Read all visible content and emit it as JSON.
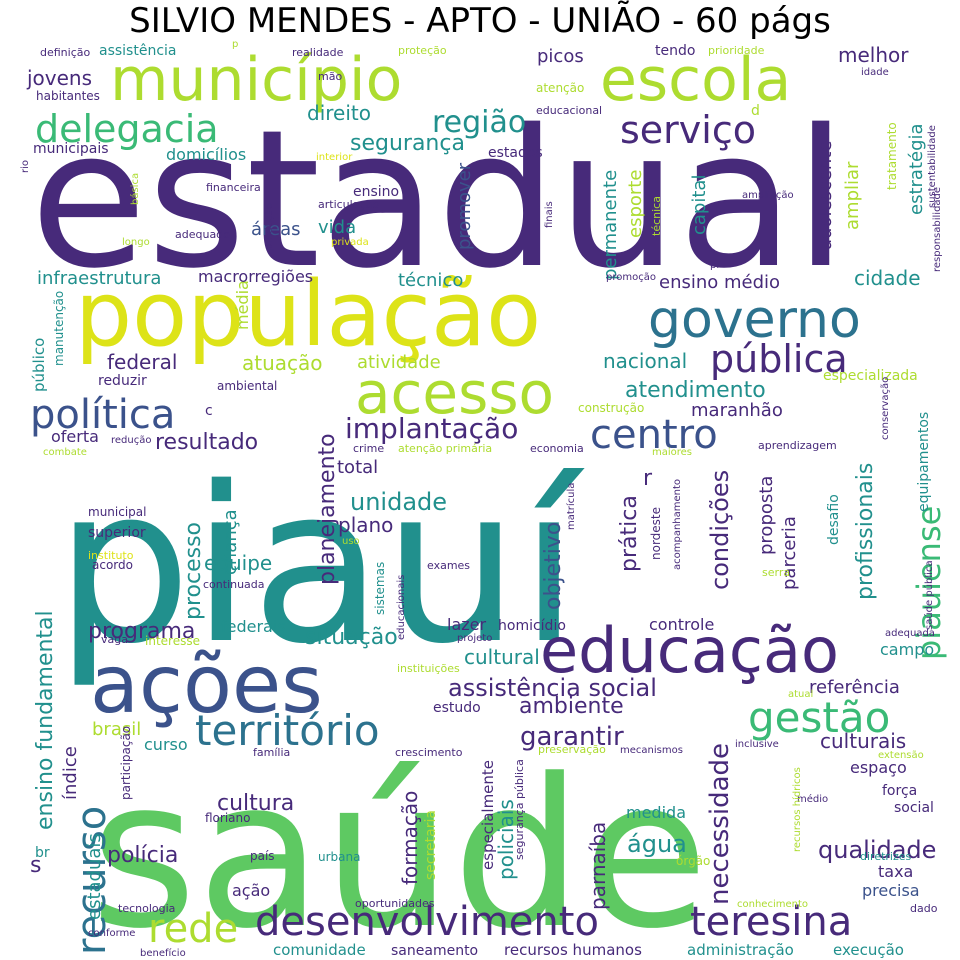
{
  "title": "SILVIO MENDES - APTO - UNIÃO - 60 págs",
  "palette": {
    "purple": "#472a7a",
    "indigo": "#3b528b",
    "blue": "#2c728e",
    "teal": "#21908d",
    "green": "#3aba76",
    "lightgreen": "#5ec962",
    "lime": "#addc30",
    "yellow": "#dde318"
  },
  "words": [
    {
      "text": "estadual",
      "weight": 1.0,
      "color": "purple"
    },
    {
      "text": "piauí",
      "weight": 0.98,
      "color": "teal"
    },
    {
      "text": "saúde",
      "weight": 0.95,
      "color": "lightgreen"
    },
    {
      "text": "população",
      "weight": 0.6,
      "color": "yellow"
    },
    {
      "text": "município",
      "weight": 0.5,
      "color": "lime"
    },
    {
      "text": "escola",
      "weight": 0.5,
      "color": "lime"
    },
    {
      "text": "ações",
      "weight": 0.52,
      "color": "indigo"
    },
    {
      "text": "educação",
      "weight": 0.45,
      "color": "purple"
    },
    {
      "text": "governo",
      "weight": 0.42,
      "color": "blue"
    },
    {
      "text": "acesso",
      "weight": 0.4,
      "color": "lime"
    },
    {
      "text": "desenvolvimento",
      "weight": 0.35,
      "color": "purple"
    },
    {
      "text": "teresina",
      "weight": 0.32,
      "color": "purple"
    },
    {
      "text": "território",
      "weight": 0.3,
      "color": "blue"
    },
    {
      "text": "delegacia",
      "weight": 0.3,
      "color": "green"
    },
    {
      "text": "política",
      "weight": 0.3,
      "color": "indigo"
    },
    {
      "text": "pública",
      "weight": 0.3,
      "color": "purple"
    },
    {
      "text": "serviço",
      "weight": 0.28,
      "color": "purple"
    },
    {
      "text": "centro",
      "weight": 0.28,
      "color": "indigo"
    },
    {
      "text": "recurso",
      "weight": 0.3,
      "color": "blue"
    },
    {
      "text": "gestão",
      "weight": 0.28,
      "color": "green"
    },
    {
      "text": "piauiense",
      "weight": 0.24,
      "color": "green"
    },
    {
      "text": "rede",
      "weight": 0.26,
      "color": "lime"
    },
    {
      "text": "região",
      "weight": 0.2,
      "color": "teal"
    },
    {
      "text": "implantação",
      "weight": 0.2,
      "color": "purple"
    },
    {
      "text": "assistência social",
      "weight": 0.18,
      "color": "purple"
    },
    {
      "text": "situação",
      "weight": 0.16,
      "color": "teal"
    },
    {
      "text": "programa",
      "weight": 0.16,
      "color": "purple"
    },
    {
      "text": "cultura",
      "weight": 0.16,
      "color": "purple"
    },
    {
      "text": "qualidade",
      "weight": 0.16,
      "color": "purple"
    },
    {
      "text": "culturais",
      "weight": 0.15,
      "color": "purple"
    },
    {
      "text": "garantir",
      "weight": 0.16,
      "color": "purple"
    },
    {
      "text": "unidade",
      "weight": 0.16,
      "color": "teal"
    },
    {
      "text": "resultado",
      "weight": 0.15,
      "color": "purple"
    },
    {
      "text": "segurança",
      "weight": 0.15,
      "color": "teal"
    },
    {
      "text": "atendimento",
      "weight": 0.15,
      "color": "teal"
    },
    {
      "text": "ensino fundamental",
      "weight": 0.16,
      "color": "teal"
    },
    {
      "text": "necessidade",
      "weight": 0.16,
      "color": "purple"
    },
    {
      "text": "condições",
      "weight": 0.15,
      "color": "purple"
    },
    {
      "text": "profissionais",
      "weight": 0.15,
      "color": "teal"
    },
    {
      "text": "polícia",
      "weight": 0.15,
      "color": "purple"
    },
    {
      "text": "água",
      "weight": 0.15,
      "color": "teal"
    },
    {
      "text": "objetivo",
      "weight": 0.15,
      "color": "indigo"
    },
    {
      "text": "planejamento",
      "weight": 0.15,
      "color": "purple"
    },
    {
      "text": "ambiente",
      "weight": 0.14,
      "color": "purple"
    },
    {
      "text": "jovens",
      "weight": 0.14,
      "color": "purple"
    },
    {
      "text": "melhor",
      "weight": 0.14,
      "color": "purple"
    },
    {
      "text": "nacional",
      "weight": 0.14,
      "color": "teal"
    },
    {
      "text": "federal",
      "weight": 0.14,
      "color": "purple"
    },
    {
      "text": "cidade",
      "weight": 0.14,
      "color": "teal"
    },
    {
      "text": "prática",
      "weight": 0.14,
      "color": "purple"
    },
    {
      "text": "direito",
      "weight": 0.14,
      "color": "teal"
    },
    {
      "text": "processo",
      "weight": 0.14,
      "color": "teal"
    },
    {
      "text": "atuação",
      "weight": 0.14,
      "color": "lime"
    },
    {
      "text": "infraestrutura",
      "weight": 0.13,
      "color": "teal"
    },
    {
      "text": "ensino médio",
      "weight": 0.13,
      "color": "purple"
    },
    {
      "text": "plano",
      "weight": 0.13,
      "color": "purple"
    },
    {
      "text": "referência",
      "weight": 0.13,
      "color": "purple"
    },
    {
      "text": "estratégia",
      "weight": 0.13,
      "color": "teal"
    },
    {
      "text": "adolescente",
      "weight": 0.13,
      "color": "purple"
    },
    {
      "text": "cultural",
      "weight": 0.13,
      "color": "teal"
    },
    {
      "text": "estaduais",
      "weight": 0.13,
      "color": "teal"
    },
    {
      "text": "parnaíba",
      "weight": 0.13,
      "color": "purple"
    },
    {
      "text": "formação",
      "weight": 0.13,
      "color": "purple"
    },
    {
      "text": "equipe",
      "weight": 0.13,
      "color": "teal"
    },
    {
      "text": "esporte",
      "weight": 0.13,
      "color": "lime"
    },
    {
      "text": "permanente",
      "weight": 0.13,
      "color": "teal"
    },
    {
      "text": "policiais",
      "weight": 0.13,
      "color": "teal"
    },
    {
      "text": "brasil",
      "weight": 0.13,
      "color": "lime"
    },
    {
      "text": "espaço",
      "weight": 0.12,
      "color": "purple"
    },
    {
      "text": "taxa",
      "weight": 0.12,
      "color": "purple"
    },
    {
      "text": "precisa",
      "weight": 0.12,
      "color": "indigo"
    },
    {
      "text": "picos",
      "weight": 0.12,
      "color": "purple"
    },
    {
      "text": "áreas",
      "weight": 0.12,
      "color": "indigo"
    },
    {
      "text": "técnico",
      "weight": 0.12,
      "color": "teal"
    },
    {
      "text": "atividade",
      "weight": 0.12,
      "color": "lime"
    },
    {
      "text": "maranhão",
      "weight": 0.12,
      "color": "purple"
    },
    {
      "text": "domicílios",
      "weight": 0.11,
      "color": "teal"
    },
    {
      "text": "assistência",
      "weight": 0.1,
      "color": "teal"
    },
    {
      "text": "tendo",
      "weight": 0.1,
      "color": "purple"
    },
    {
      "text": "estados",
      "weight": 0.1,
      "color": "purple"
    },
    {
      "text": "ampliar",
      "weight": 0.12,
      "color": "lime"
    },
    {
      "text": "capital",
      "weight": 0.12,
      "color": "teal"
    },
    {
      "text": "promover",
      "weight": 0.12,
      "color": "indigo"
    },
    {
      "text": "vida",
      "weight": 0.12,
      "color": "teal"
    },
    {
      "text": "ensino",
      "weight": 0.1,
      "color": "purple"
    },
    {
      "text": "média",
      "weight": 0.11,
      "color": "lime"
    },
    {
      "text": "macrorregiões",
      "weight": 0.1,
      "color": "purple"
    },
    {
      "text": "especializada",
      "weight": 0.1,
      "color": "lime"
    },
    {
      "text": "total",
      "weight": 0.12,
      "color": "purple"
    },
    {
      "text": "criança",
      "weight": 0.12,
      "color": "teal"
    },
    {
      "text": "proposta",
      "weight": 0.12,
      "color": "purple"
    },
    {
      "text": "parceria",
      "weight": 0.12,
      "color": "purple"
    },
    {
      "text": "superior",
      "weight": 0.1,
      "color": "purple"
    },
    {
      "text": "índice",
      "weight": 0.12,
      "color": "purple"
    },
    {
      "text": "oferta",
      "weight": 0.1,
      "color": "purple"
    },
    {
      "text": "reduzir",
      "weight": 0.09,
      "color": "purple"
    },
    {
      "text": "lazer",
      "weight": 0.1,
      "color": "purple"
    },
    {
      "text": "homicídio",
      "weight": 0.09,
      "color": "purple"
    },
    {
      "text": "controle",
      "weight": 0.1,
      "color": "purple"
    },
    {
      "text": "federais",
      "weight": 0.1,
      "color": "teal"
    },
    {
      "text": "campo",
      "weight": 0.1,
      "color": "teal"
    },
    {
      "text": "estudo",
      "weight": 0.09,
      "color": "purple"
    },
    {
      "text": "curso",
      "weight": 0.1,
      "color": "teal"
    },
    {
      "text": "medida",
      "weight": 0.1,
      "color": "teal"
    },
    {
      "text": "ação",
      "weight": 0.09,
      "color": "purple"
    },
    {
      "text": "comunidade",
      "weight": 0.09,
      "color": "teal"
    },
    {
      "text": "saneamento",
      "weight": 0.09,
      "color": "purple"
    },
    {
      "text": "recursos humanos",
      "weight": 0.09,
      "color": "purple"
    },
    {
      "text": "administração",
      "weight": 0.09,
      "color": "teal"
    },
    {
      "text": "execução",
      "weight": 0.09,
      "color": "teal"
    },
    {
      "text": "força",
      "weight": 0.08,
      "color": "purple"
    },
    {
      "text": "social",
      "weight": 0.08,
      "color": "purple"
    },
    {
      "text": "equipamentos",
      "weight": 0.09,
      "color": "teal"
    },
    {
      "text": "desafio",
      "weight": 0.09,
      "color": "teal"
    },
    {
      "text": "especialmente",
      "weight": 0.09,
      "color": "purple"
    },
    {
      "text": "secretaria",
      "weight": 0.09,
      "color": "lime"
    },
    {
      "text": "público",
      "weight": 0.09,
      "color": "teal"
    },
    {
      "text": "manutenção",
      "weight": 0.07,
      "color": "teal"
    },
    {
      "text": "ambiental",
      "weight": 0.07,
      "color": "purple"
    },
    {
      "text": "construção",
      "weight": 0.07,
      "color": "lime"
    },
    {
      "text": "crime",
      "weight": 0.07,
      "color": "purple"
    },
    {
      "text": "atenção primária",
      "weight": 0.07,
      "color": "lime"
    },
    {
      "text": "economia",
      "weight": 0.07,
      "color": "purple"
    },
    {
      "text": "aprendizagem",
      "weight": 0.07,
      "color": "purple"
    },
    {
      "text": "maiores",
      "weight": 0.06,
      "color": "lime"
    },
    {
      "text": "redução",
      "weight": 0.06,
      "color": "purple"
    },
    {
      "text": "combate",
      "weight": 0.06,
      "color": "lime"
    },
    {
      "text": "municipal",
      "weight": 0.07,
      "color": "purple"
    },
    {
      "text": "instituto",
      "weight": 0.06,
      "color": "yellow"
    },
    {
      "text": "acordo",
      "weight": 0.07,
      "color": "purple"
    },
    {
      "text": "exames",
      "weight": 0.06,
      "color": "purple"
    },
    {
      "text": "continuada",
      "weight": 0.06,
      "color": "purple"
    },
    {
      "text": "vaga",
      "weight": 0.06,
      "color": "purple"
    },
    {
      "text": "interesse",
      "weight": 0.07,
      "color": "lime"
    },
    {
      "text": "projeto",
      "weight": 0.06,
      "color": "purple"
    },
    {
      "text": "instituições",
      "weight": 0.06,
      "color": "lime"
    },
    {
      "text": "atual",
      "weight": 0.06,
      "color": "lime"
    },
    {
      "text": "inclusive",
      "weight": 0.06,
      "color": "purple"
    },
    {
      "text": "família",
      "weight": 0.06,
      "color": "purple"
    },
    {
      "text": "crescimento",
      "weight": 0.06,
      "color": "purple"
    },
    {
      "text": "preservação",
      "weight": 0.06,
      "color": "lime"
    },
    {
      "text": "mecanismos",
      "weight": 0.06,
      "color": "purple"
    },
    {
      "text": "extensão",
      "weight": 0.06,
      "color": "lime"
    },
    {
      "text": "médio",
      "weight": 0.06,
      "color": "purple"
    },
    {
      "text": "floriano",
      "weight": 0.06,
      "color": "purple"
    },
    {
      "text": "país",
      "weight": 0.06,
      "color": "purple"
    },
    {
      "text": "urbana",
      "weight": 0.07,
      "color": "teal"
    },
    {
      "text": "órgão",
      "weight": 0.06,
      "color": "lime"
    },
    {
      "text": "diretrizes",
      "weight": 0.06,
      "color": "teal"
    },
    {
      "text": "tecnologia",
      "weight": 0.06,
      "color": "purple"
    },
    {
      "text": "oportunidades",
      "weight": 0.06,
      "color": "purple"
    },
    {
      "text": "conhecimento",
      "weight": 0.06,
      "color": "lime"
    },
    {
      "text": "dado",
      "weight": 0.06,
      "color": "purple"
    },
    {
      "text": "conforme",
      "weight": 0.06,
      "color": "purple"
    },
    {
      "text": "benefício",
      "weight": 0.06,
      "color": "purple"
    },
    {
      "text": "participação",
      "weight": 0.06,
      "color": "purple"
    },
    {
      "text": "br",
      "weight": 0.08,
      "color": "teal"
    },
    {
      "text": "definição",
      "weight": 0.05,
      "color": "purple"
    },
    {
      "text": "realidade",
      "weight": 0.05,
      "color": "purple"
    },
    {
      "text": "proteção",
      "weight": 0.05,
      "color": "lime"
    },
    {
      "text": "prioridade",
      "weight": 0.05,
      "color": "lime"
    },
    {
      "text": "habitantes",
      "weight": 0.05,
      "color": "purple"
    },
    {
      "text": "municipais",
      "weight": 0.06,
      "color": "purple"
    },
    {
      "text": "mão",
      "weight": 0.05,
      "color": "purple"
    },
    {
      "text": "atenção",
      "weight": 0.06,
      "color": "lime"
    },
    {
      "text": "educacional",
      "weight": 0.05,
      "color": "purple"
    },
    {
      "text": "idade",
      "weight": 0.05,
      "color": "purple"
    },
    {
      "text": "interior",
      "weight": 0.05,
      "color": "yellow"
    },
    {
      "text": "tratamento",
      "weight": 0.05,
      "color": "lime"
    },
    {
      "text": "financeira",
      "weight": 0.05,
      "color": "purple"
    },
    {
      "text": "articulação",
      "weight": 0.05,
      "color": "purple"
    },
    {
      "text": "ampliação",
      "weight": 0.05,
      "color": "purple"
    },
    {
      "text": "adequado",
      "weight": 0.05,
      "color": "purple"
    },
    {
      "text": "privada",
      "weight": 0.05,
      "color": "yellow"
    },
    {
      "text": "longo",
      "weight": 0.05,
      "color": "lime"
    },
    {
      "text": "produção",
      "weight": 0.05,
      "color": "purple"
    },
    {
      "text": "promoção",
      "weight": 0.05,
      "color": "purple"
    },
    {
      "text": "técnica",
      "weight": 0.05,
      "color": "lime"
    },
    {
      "text": "finais",
      "weight": 0.05,
      "color": "purple"
    },
    {
      "text": "responsabilidade",
      "weight": 0.05,
      "color": "purple"
    },
    {
      "text": "sustentabilidade",
      "weight": 0.05,
      "color": "purple"
    },
    {
      "text": "básica",
      "weight": 0.05,
      "color": "lime"
    },
    {
      "text": "rio",
      "weight": 0.05,
      "color": "purple"
    },
    {
      "text": "pi",
      "weight": 0.05,
      "color": "purple"
    },
    {
      "text": "adequada",
      "weight": 0.05,
      "color": "purple"
    },
    {
      "text": "conservação",
      "weight": 0.05,
      "color": "purple"
    },
    {
      "text": "acompanhamento",
      "weight": 0.05,
      "color": "purple"
    },
    {
      "text": "nordeste",
      "weight": 0.06,
      "color": "purple"
    },
    {
      "text": "matrícula",
      "weight": 0.05,
      "color": "purple"
    },
    {
      "text": "sistemas",
      "weight": 0.06,
      "color": "teal"
    },
    {
      "text": "educacionais",
      "weight": 0.05,
      "color": "purple"
    },
    {
      "text": "serra",
      "weight": 0.05,
      "color": "lime"
    },
    {
      "text": "saúde pública",
      "weight": 0.05,
      "color": "purple"
    },
    {
      "text": "recursos hídricos",
      "weight": 0.05,
      "color": "lime"
    },
    {
      "text": "segurança pública",
      "weight": 0.05,
      "color": "purple"
    },
    {
      "text": "uso",
      "weight": 0.05,
      "color": "lime"
    },
    {
      "text": "r",
      "weight": 0.12,
      "color": "purple"
    },
    {
      "text": "s",
      "weight": 0.12,
      "color": "purple"
    },
    {
      "text": "c",
      "weight": 0.07,
      "color": "purple"
    },
    {
      "text": "d",
      "weight": 0.06,
      "color": "lime"
    },
    {
      "text": "p",
      "weight": 0.05,
      "color": "lime"
    }
  ]
}
